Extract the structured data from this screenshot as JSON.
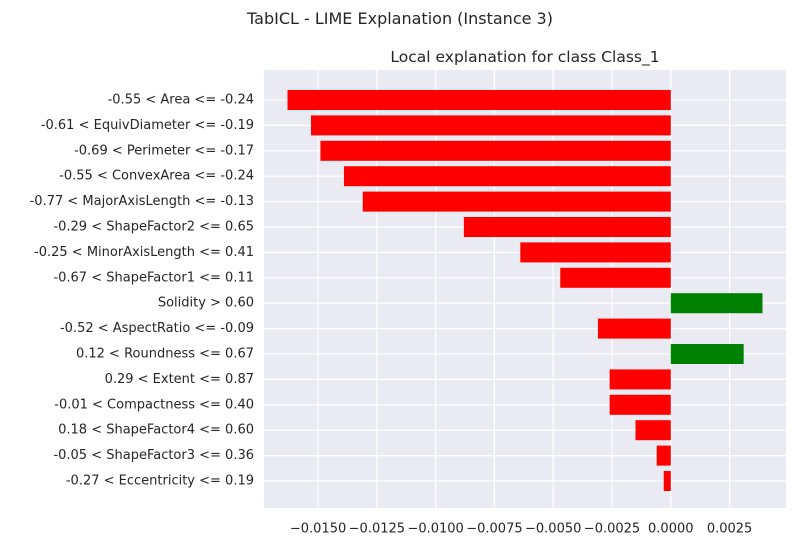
{
  "figure_title": "TabICL - LIME Explanation (Instance 3)",
  "chart_data": {
    "type": "bar",
    "orientation": "horizontal",
    "title": "Local explanation for class Class_1",
    "xlabel": "",
    "ylabel": "",
    "categories": [
      "-0.55 < Area <= -0.24",
      "-0.61 < EquivDiameter <= -0.19",
      "-0.69 < Perimeter <= -0.17",
      "-0.55 < ConvexArea <= -0.24",
      "-0.77 < MajorAxisLength <= -0.13",
      "-0.29 < ShapeFactor2 <= 0.65",
      "-0.25 < MinorAxisLength <= 0.41",
      "-0.67 < ShapeFactor1 <= 0.11",
      "Solidity > 0.60",
      "-0.52 < AspectRatio <= -0.09",
      "0.12 < Roundness <= 0.67",
      "0.29 < Extent <= 0.87",
      "-0.01 < Compactness <= 0.40",
      "0.18 < ShapeFactor4 <= 0.60",
      "-0.05 < ShapeFactor3 <= 0.36",
      "-0.27 < Eccentricity <= 0.19"
    ],
    "values": [
      -0.0163,
      -0.0153,
      -0.0149,
      -0.0139,
      -0.0131,
      -0.0088,
      -0.0064,
      -0.0047,
      0.0039,
      -0.0031,
      0.0031,
      -0.0026,
      -0.0026,
      -0.0015,
      -0.0006,
      -0.0003
    ],
    "xlim": [
      -0.0173,
      0.0049
    ],
    "xticks": [
      -0.015,
      -0.0125,
      -0.01,
      -0.0075,
      -0.005,
      -0.0025,
      0.0,
      0.0025
    ],
    "xtick_labels": [
      "−0.0150",
      "−0.0125",
      "−0.0100",
      "−0.0075",
      "−0.0050",
      "−0.0025",
      "0.0000",
      "0.0025"
    ],
    "colors": {
      "positive": "#008000",
      "negative": "#ff0000",
      "background": "#eaeaf2",
      "grid": "#ffffff"
    },
    "grid": true,
    "legend": "none"
  }
}
